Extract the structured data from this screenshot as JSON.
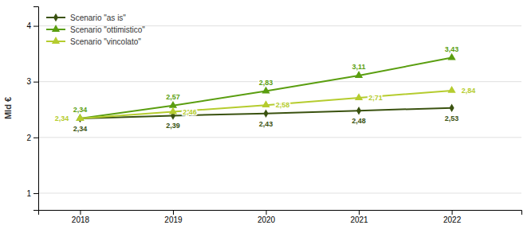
{
  "chart_data": {
    "type": "line",
    "ylabel": "Mld €",
    "x": [
      2018,
      2019,
      2020,
      2021,
      2022
    ],
    "xlim": [
      2017.55,
      2022.75
    ],
    "xticks": [
      2018,
      2019,
      2020,
      2021,
      2022
    ],
    "ylim": [
      0.7,
      4.35
    ],
    "yticks": [
      1,
      2,
      3,
      4
    ],
    "grid": true,
    "legend": "upper left",
    "data_labels": true,
    "series": [
      {
        "name": "Scenario \"as is\"",
        "color": "#3a5210",
        "marker": "diamond",
        "values": [
          2.34,
          2.39,
          2.43,
          2.48,
          2.53
        ],
        "value_labels": [
          "2,34",
          "2,39",
          "2,43",
          "2,48",
          "2,53"
        ]
      },
      {
        "name": "Scenario \"ottimistico\"",
        "color": "#5a9e10",
        "marker": "triangle",
        "values": [
          2.34,
          2.57,
          2.83,
          3.11,
          3.43
        ],
        "value_labels": [
          "2,34",
          "2,57",
          "2,83",
          "3,11",
          "3,43"
        ]
      },
      {
        "name": "Scenario \"vincolato\"",
        "color": "#b5cc2e",
        "marker": "triangle",
        "values": [
          2.34,
          2.46,
          2.58,
          2.71,
          2.84
        ],
        "value_labels": [
          "2,34",
          "2,46",
          "2,58",
          "2,71",
          "2,84"
        ]
      }
    ]
  }
}
